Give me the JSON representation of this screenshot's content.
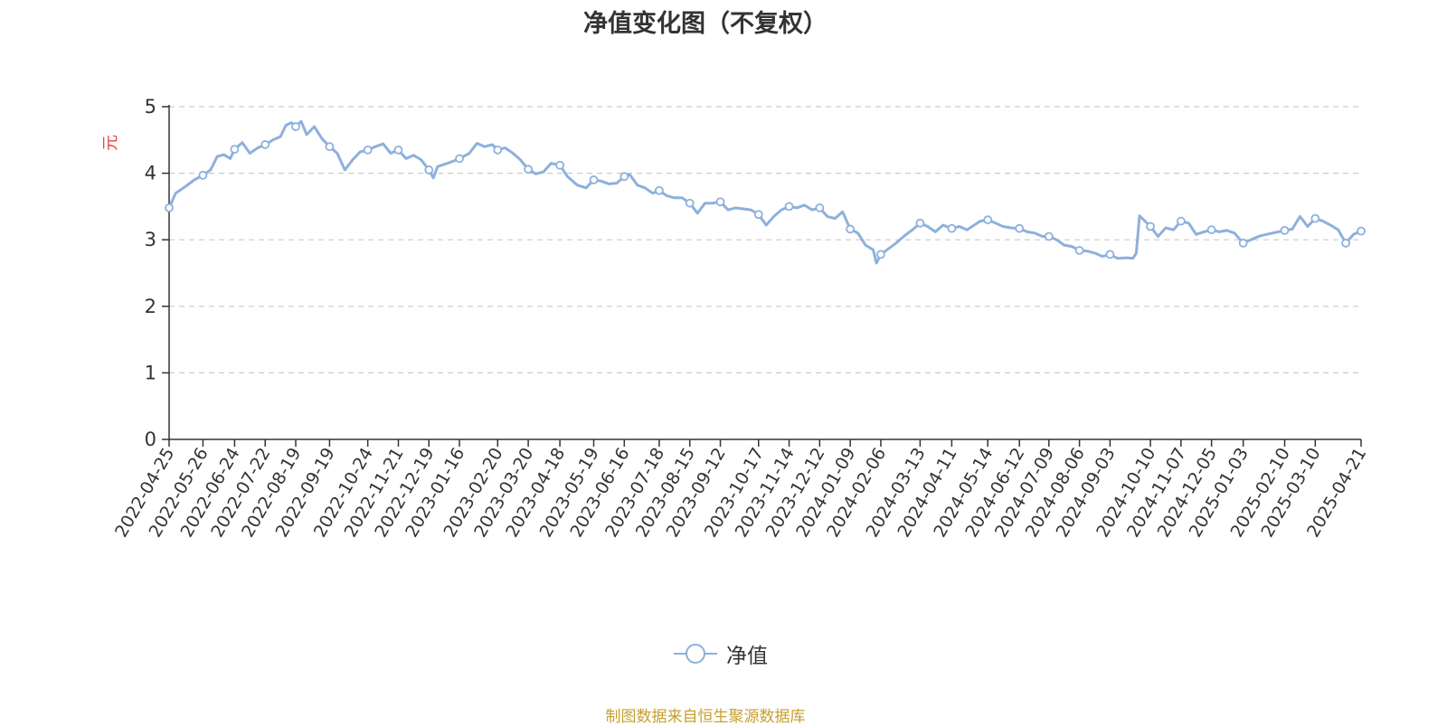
{
  "chart_data": {
    "type": "line",
    "title": "净值变化图（不复权）",
    "ylabel": "元",
    "ylim": [
      0,
      5
    ],
    "yticks": [
      0,
      1,
      2,
      3,
      4,
      5
    ],
    "grid": true,
    "legend": "bottom-center",
    "x_labels": [
      "2022-04-25",
      "2022-05-26",
      "2022-06-24",
      "2022-07-22",
      "2022-08-19",
      "2022-09-19",
      "2022-10-24",
      "2022-11-21",
      "2022-12-19",
      "2023-01-16",
      "2023-02-20",
      "2023-03-20",
      "2023-04-18",
      "2023-05-19",
      "2023-06-16",
      "2023-07-18",
      "2023-08-15",
      "2023-09-12",
      "2023-10-17",
      "2023-11-14",
      "2023-12-12",
      "2024-01-09",
      "2024-02-06",
      "2024-03-13",
      "2024-04-11",
      "2024-05-14",
      "2024-06-12",
      "2024-07-09",
      "2024-08-06",
      "2024-09-03",
      "2024-10-10",
      "2024-11-07",
      "2024-12-05",
      "2025-01-03",
      "2025-02-10",
      "2025-03-10",
      "2025-04-21"
    ],
    "series": [
      {
        "name": "净值",
        "color": "#8eb0dc",
        "marker": "hollow-circle",
        "points": [
          [
            "2022-04-25",
            3.48
          ],
          [
            "2022-05-01",
            3.7
          ],
          [
            "2022-05-10",
            3.8
          ],
          [
            "2022-05-18",
            3.9
          ],
          [
            "2022-05-26",
            3.97
          ],
          [
            "2022-06-02",
            4.05
          ],
          [
            "2022-06-08",
            4.25
          ],
          [
            "2022-06-14",
            4.28
          ],
          [
            "2022-06-20",
            4.22
          ],
          [
            "2022-06-24",
            4.36
          ],
          [
            "2022-07-01",
            4.46
          ],
          [
            "2022-07-08",
            4.3
          ],
          [
            "2022-07-15",
            4.38
          ],
          [
            "2022-07-22",
            4.43
          ],
          [
            "2022-07-29",
            4.5
          ],
          [
            "2022-08-05",
            4.55
          ],
          [
            "2022-08-10",
            4.72
          ],
          [
            "2022-08-15",
            4.76
          ],
          [
            "2022-08-19",
            4.7
          ],
          [
            "2022-08-24",
            4.78
          ],
          [
            "2022-08-29",
            4.58
          ],
          [
            "2022-09-05",
            4.7
          ],
          [
            "2022-09-12",
            4.52
          ],
          [
            "2022-09-19",
            4.4
          ],
          [
            "2022-09-26",
            4.3
          ],
          [
            "2022-10-03",
            4.05
          ],
          [
            "2022-10-10",
            4.2
          ],
          [
            "2022-10-17",
            4.32
          ],
          [
            "2022-10-24",
            4.35
          ],
          [
            "2022-10-31",
            4.4
          ],
          [
            "2022-11-07",
            4.44
          ],
          [
            "2022-11-14",
            4.3
          ],
          [
            "2022-11-21",
            4.35
          ],
          [
            "2022-11-28",
            4.22
          ],
          [
            "2022-12-05",
            4.27
          ],
          [
            "2022-12-12",
            4.2
          ],
          [
            "2022-12-19",
            4.05
          ],
          [
            "2022-12-23",
            3.93
          ],
          [
            "2022-12-27",
            4.1
          ],
          [
            "2023-01-05",
            4.15
          ],
          [
            "2023-01-10",
            4.18
          ],
          [
            "2023-01-16",
            4.22
          ],
          [
            "2023-01-25",
            4.3
          ],
          [
            "2023-02-01",
            4.45
          ],
          [
            "2023-02-08",
            4.4
          ],
          [
            "2023-02-15",
            4.43
          ],
          [
            "2023-02-20",
            4.35
          ],
          [
            "2023-02-27",
            4.38
          ],
          [
            "2023-03-06",
            4.3
          ],
          [
            "2023-03-13",
            4.2
          ],
          [
            "2023-03-20",
            4.06
          ],
          [
            "2023-03-27",
            3.99
          ],
          [
            "2023-04-03",
            4.02
          ],
          [
            "2023-04-10",
            4.15
          ],
          [
            "2023-04-18",
            4.12
          ],
          [
            "2023-04-25",
            3.95
          ],
          [
            "2023-05-04",
            3.82
          ],
          [
            "2023-05-12",
            3.78
          ],
          [
            "2023-05-19",
            3.9
          ],
          [
            "2023-05-26",
            3.88
          ],
          [
            "2023-06-02",
            3.84
          ],
          [
            "2023-06-09",
            3.85
          ],
          [
            "2023-06-16",
            3.95
          ],
          [
            "2023-06-21",
            3.98
          ],
          [
            "2023-06-28",
            3.82
          ],
          [
            "2023-07-05",
            3.78
          ],
          [
            "2023-07-12",
            3.7
          ],
          [
            "2023-07-18",
            3.74
          ],
          [
            "2023-07-25",
            3.66
          ],
          [
            "2023-08-01",
            3.63
          ],
          [
            "2023-08-08",
            3.63
          ],
          [
            "2023-08-15",
            3.55
          ],
          [
            "2023-08-22",
            3.4
          ],
          [
            "2023-08-29",
            3.55
          ],
          [
            "2023-09-05",
            3.55
          ],
          [
            "2023-09-12",
            3.57
          ],
          [
            "2023-09-19",
            3.45
          ],
          [
            "2023-09-26",
            3.48
          ],
          [
            "2023-10-10",
            3.45
          ],
          [
            "2023-10-17",
            3.38
          ],
          [
            "2023-10-24",
            3.22
          ],
          [
            "2023-10-31",
            3.35
          ],
          [
            "2023-11-07",
            3.45
          ],
          [
            "2023-11-14",
            3.5
          ],
          [
            "2023-11-21",
            3.48
          ],
          [
            "2023-11-28",
            3.52
          ],
          [
            "2023-12-05",
            3.45
          ],
          [
            "2023-12-12",
            3.48
          ],
          [
            "2023-12-19",
            3.35
          ],
          [
            "2023-12-26",
            3.32
          ],
          [
            "2024-01-02",
            3.42
          ],
          [
            "2024-01-09",
            3.16
          ],
          [
            "2024-01-16",
            3.1
          ],
          [
            "2024-01-23",
            2.92
          ],
          [
            "2024-01-30",
            2.85
          ],
          [
            "2024-02-02",
            2.65
          ],
          [
            "2024-02-06",
            2.78
          ],
          [
            "2024-02-20",
            2.95
          ],
          [
            "2024-02-27",
            3.05
          ],
          [
            "2024-03-06",
            3.15
          ],
          [
            "2024-03-13",
            3.25
          ],
          [
            "2024-03-20",
            3.2
          ],
          [
            "2024-03-27",
            3.12
          ],
          [
            "2024-04-03",
            3.22
          ],
          [
            "2024-04-11",
            3.17
          ],
          [
            "2024-04-18",
            3.2
          ],
          [
            "2024-04-25",
            3.15
          ],
          [
            "2024-05-07",
            3.28
          ],
          [
            "2024-05-14",
            3.3
          ],
          [
            "2024-05-21",
            3.25
          ],
          [
            "2024-05-28",
            3.2
          ],
          [
            "2024-06-04",
            3.18
          ],
          [
            "2024-06-12",
            3.17
          ],
          [
            "2024-06-19",
            3.12
          ],
          [
            "2024-06-26",
            3.1
          ],
          [
            "2024-07-03",
            3.05
          ],
          [
            "2024-07-09",
            3.05
          ],
          [
            "2024-07-16",
            3.0
          ],
          [
            "2024-07-23",
            2.92
          ],
          [
            "2024-07-30",
            2.9
          ],
          [
            "2024-08-06",
            2.84
          ],
          [
            "2024-08-13",
            2.83
          ],
          [
            "2024-08-20",
            2.8
          ],
          [
            "2024-08-27",
            2.75
          ],
          [
            "2024-09-03",
            2.78
          ],
          [
            "2024-09-10",
            2.72
          ],
          [
            "2024-09-18",
            2.73
          ],
          [
            "2024-09-24",
            2.72
          ],
          [
            "2024-09-27",
            2.8
          ],
          [
            "2024-09-30",
            3.36
          ],
          [
            "2024-10-10",
            3.2
          ],
          [
            "2024-10-17",
            3.05
          ],
          [
            "2024-10-24",
            3.18
          ],
          [
            "2024-10-31",
            3.15
          ],
          [
            "2024-11-07",
            3.28
          ],
          [
            "2024-11-14",
            3.25
          ],
          [
            "2024-11-21",
            3.08
          ],
          [
            "2024-11-28",
            3.12
          ],
          [
            "2024-12-05",
            3.15
          ],
          [
            "2024-12-12",
            3.12
          ],
          [
            "2024-12-19",
            3.14
          ],
          [
            "2024-12-26",
            3.1
          ],
          [
            "2025-01-03",
            2.95
          ],
          [
            "2025-01-10",
            3.0
          ],
          [
            "2025-01-17",
            3.05
          ],
          [
            "2025-01-24",
            3.08
          ],
          [
            "2025-02-10",
            3.14
          ],
          [
            "2025-02-17",
            3.16
          ],
          [
            "2025-02-24",
            3.35
          ],
          [
            "2025-03-03",
            3.2
          ],
          [
            "2025-03-10",
            3.32
          ],
          [
            "2025-03-17",
            3.28
          ],
          [
            "2025-03-24",
            3.22
          ],
          [
            "2025-03-31",
            3.15
          ],
          [
            "2025-04-07",
            2.95
          ],
          [
            "2025-04-14",
            3.08
          ],
          [
            "2025-04-21",
            3.13
          ]
        ]
      }
    ],
    "marker_dates": [
      "2022-04-25",
      "2022-05-26",
      "2022-06-24",
      "2022-07-22",
      "2022-08-19",
      "2022-09-19",
      "2022-10-24",
      "2022-11-21",
      "2022-12-19",
      "2023-01-16",
      "2023-02-20",
      "2023-03-20",
      "2023-04-18",
      "2023-05-19",
      "2023-06-16",
      "2023-07-18",
      "2023-08-15",
      "2023-09-12",
      "2023-10-17",
      "2023-11-14",
      "2023-12-12",
      "2024-01-09",
      "2024-02-06",
      "2024-03-13",
      "2024-04-11",
      "2024-05-14",
      "2024-06-12",
      "2024-07-09",
      "2024-08-06",
      "2024-09-03",
      "2024-10-10",
      "2024-11-07",
      "2024-12-05",
      "2025-01-03",
      "2025-02-10",
      "2025-03-10",
      "2025-04-07",
      "2025-04-21"
    ]
  },
  "legend": {
    "label": "净值"
  },
  "source_note": "制图数据来自恒生聚源数据库"
}
